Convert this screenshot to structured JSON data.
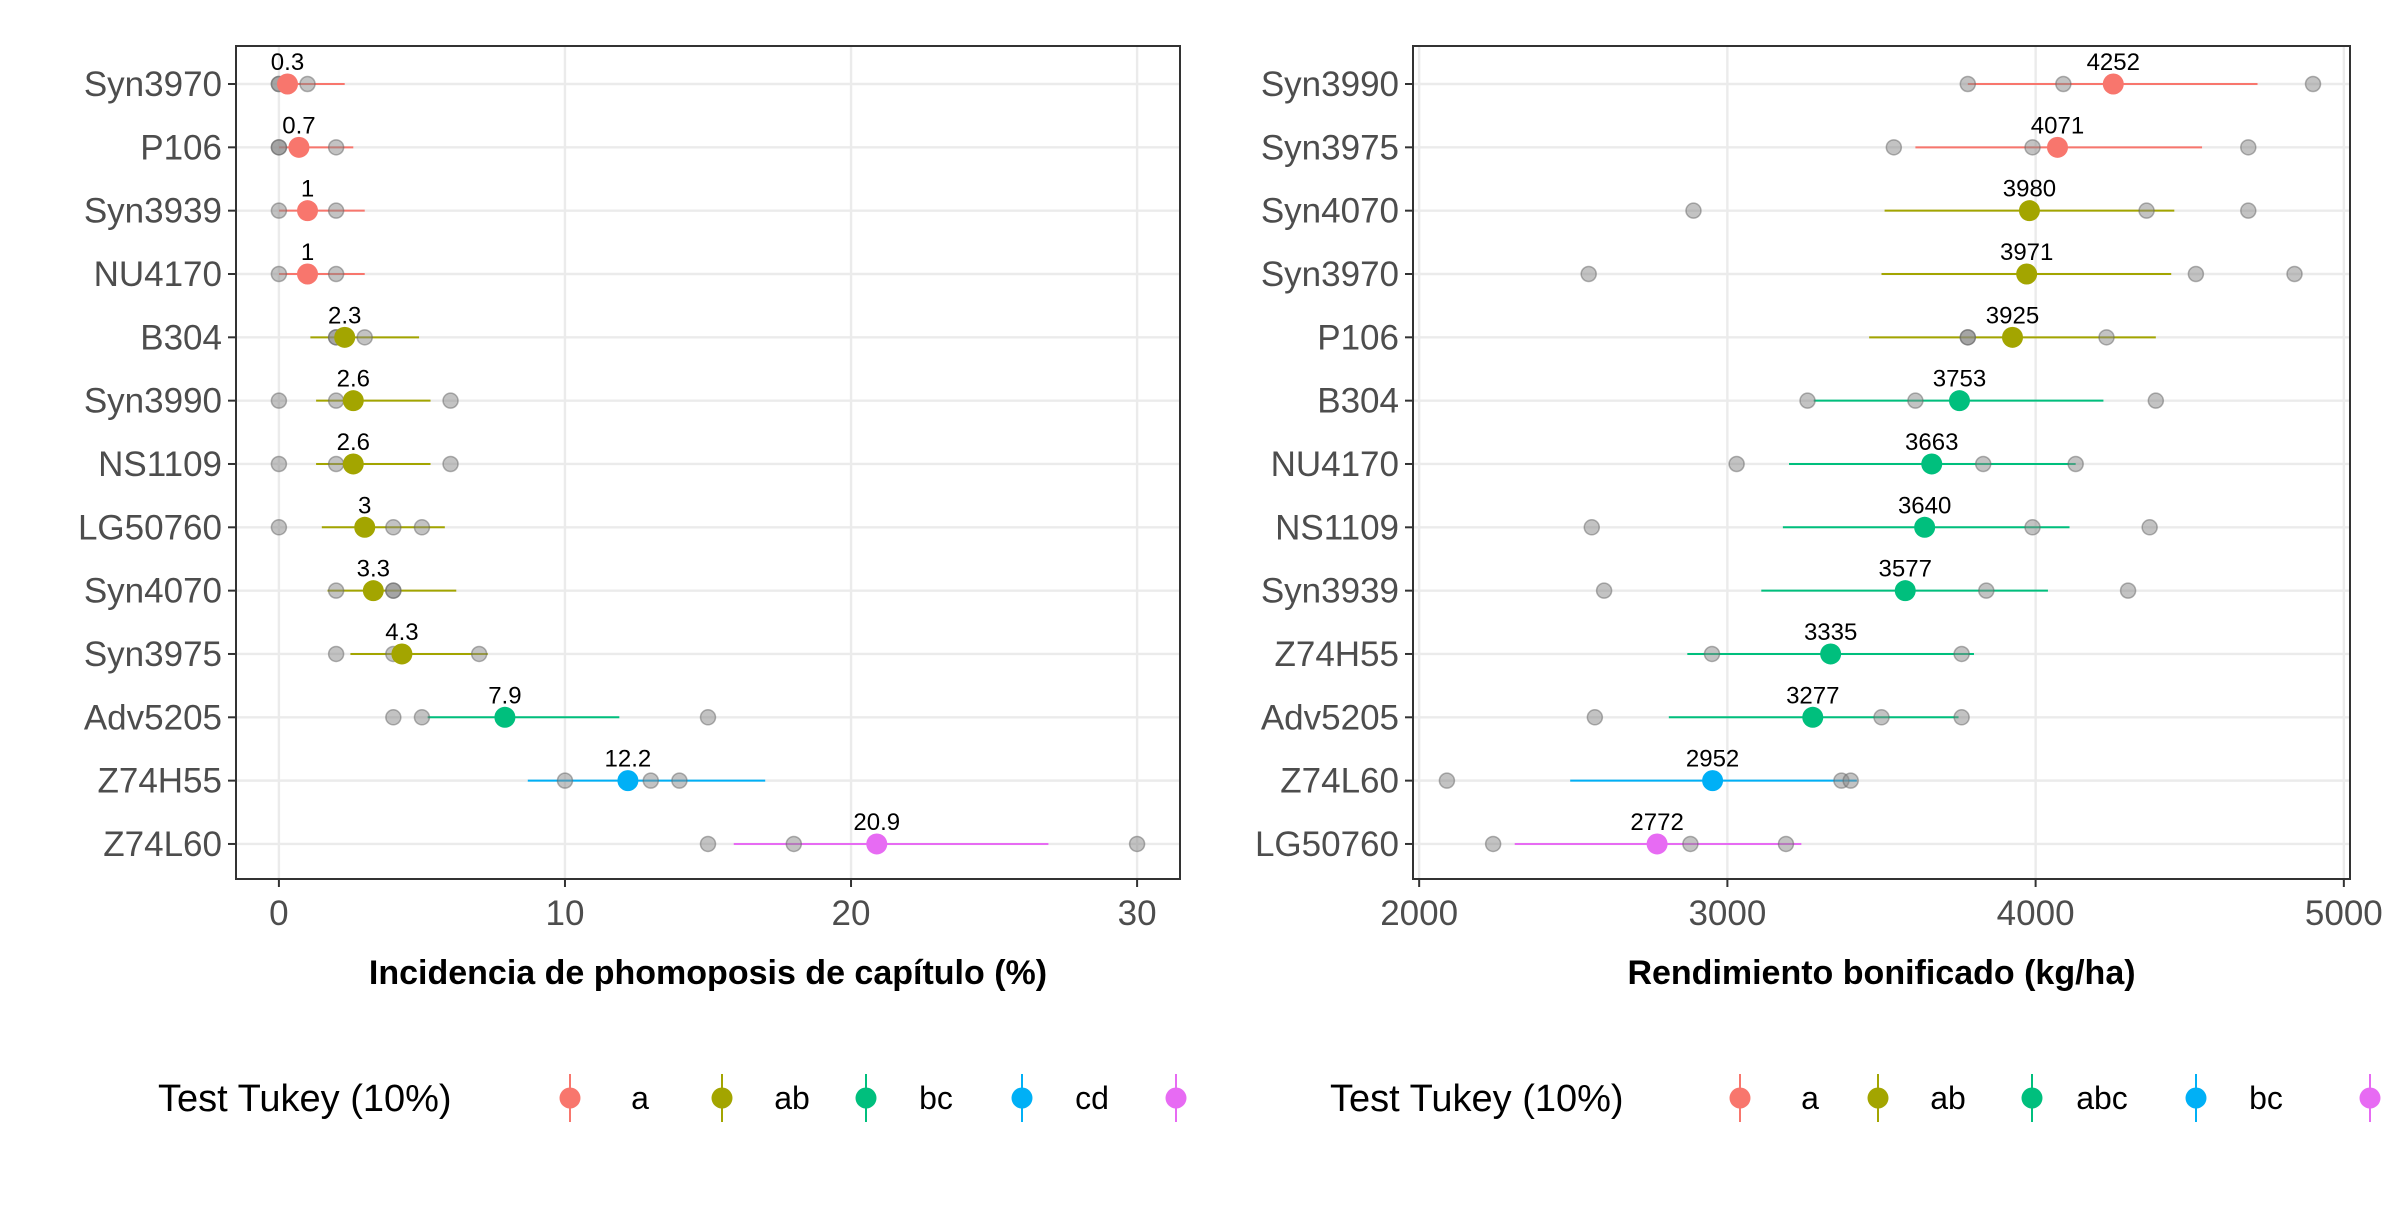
{
  "chart_data": [
    {
      "type": "scatter",
      "xlabel": "Incidencia de phomoposis de capítulo (%)",
      "ylabel": "",
      "xlim": [
        -1.5,
        31.5
      ],
      "xticks": [
        0,
        10,
        20,
        30
      ],
      "grid": true,
      "legend_position": "bottom",
      "legend": {
        "title": "Test Tukey (10%)",
        "entries": [
          {
            "label": "a",
            "color": "#F8766D"
          },
          {
            "label": "ab",
            "color": "#A3A500"
          },
          {
            "label": "bc",
            "color": "#00BF7D"
          },
          {
            "label": "cd",
            "color": "#00B0F6"
          },
          {
            "label": "",
            "color": "#E76BF3"
          }
        ]
      },
      "categories": [
        "Syn3970",
        "P106",
        "Syn3939",
        "NU4170",
        "B304",
        "Syn3990",
        "NS1109",
        "LG50760",
        "Syn4070",
        "Syn3975",
        "Adv5205",
        "Z74H55",
        "Z74L60"
      ],
      "series": [
        {
          "category": "Syn3970",
          "group": "a",
          "mean": 0.3,
          "label": "0.3",
          "ci": [
            0,
            2.3
          ],
          "obs": [
            0,
            0,
            1
          ]
        },
        {
          "category": "P106",
          "group": "a",
          "mean": 0.7,
          "label": "0.7",
          "ci": [
            0,
            2.6
          ],
          "obs": [
            0,
            0,
            2
          ]
        },
        {
          "category": "Syn3939",
          "group": "a",
          "mean": 1,
          "label": "1",
          "ci": [
            0,
            3.0
          ],
          "obs": [
            0,
            1,
            2
          ]
        },
        {
          "category": "NU4170",
          "group": "a",
          "mean": 1,
          "label": "1",
          "ci": [
            0,
            3.0
          ],
          "obs": [
            0,
            1,
            2
          ]
        },
        {
          "category": "B304",
          "group": "ab",
          "mean": 2.3,
          "label": "2.3",
          "ci": [
            1.1,
            4.9
          ],
          "obs": [
            2,
            2,
            3
          ]
        },
        {
          "category": "Syn3990",
          "group": "ab",
          "mean": 2.6,
          "label": "2.6",
          "ci": [
            1.3,
            5.3
          ],
          "obs": [
            0,
            2,
            6
          ]
        },
        {
          "category": "NS1109",
          "group": "ab",
          "mean": 2.6,
          "label": "2.6",
          "ci": [
            1.3,
            5.3
          ],
          "obs": [
            0,
            2,
            6
          ]
        },
        {
          "category": "LG50760",
          "group": "ab",
          "mean": 3,
          "label": "3",
          "ci": [
            1.5,
            5.8
          ],
          "obs": [
            0,
            4,
            5
          ]
        },
        {
          "category": "Syn4070",
          "group": "ab",
          "mean": 3.3,
          "label": "3.3",
          "ci": [
            1.7,
            6.2
          ],
          "obs": [
            2,
            4,
            4
          ]
        },
        {
          "category": "Syn3975",
          "group": "ab",
          "mean": 4.3,
          "label": "4.3",
          "ci": [
            2.5,
            7.3
          ],
          "obs": [
            2,
            4,
            7
          ]
        },
        {
          "category": "Adv5205",
          "group": "bc",
          "mean": 7.9,
          "label": "7.9",
          "ci": [
            5.2,
            11.9
          ],
          "obs": [
            4,
            5,
            15
          ]
        },
        {
          "category": "Z74H55",
          "group": "cd",
          "mean": 12.2,
          "label": "12.2",
          "ci": [
            8.7,
            17.0
          ],
          "obs": [
            10,
            13,
            14
          ]
        },
        {
          "category": "Z74L60",
          "group": "",
          "mean": 20.9,
          "label": "20.9",
          "ci": [
            15.9,
            26.9
          ],
          "obs": [
            15,
            18,
            30
          ]
        }
      ]
    },
    {
      "type": "scatter",
      "xlabel": "Rendimiento bonificado (kg/ha)",
      "ylabel": "",
      "xlim": [
        1980,
        5020
      ],
      "xticks": [
        2000,
        3000,
        4000,
        5000
      ],
      "grid": true,
      "legend_position": "bottom",
      "legend": {
        "title": "Test Tukey (10%)",
        "entries": [
          {
            "label": "a",
            "color": "#F8766D"
          },
          {
            "label": "ab",
            "color": "#A3A500"
          },
          {
            "label": "abc",
            "color": "#00BF7D"
          },
          {
            "label": "bc",
            "color": "#00B0F6"
          },
          {
            "label": "",
            "color": "#E76BF3"
          }
        ]
      },
      "categories": [
        "Syn3990",
        "Syn3975",
        "Syn4070",
        "Syn3970",
        "P106",
        "B304",
        "NU4170",
        "NS1109",
        "Syn3939",
        "Z74H55",
        "Adv5205",
        "Z74L60",
        "LG50760"
      ],
      "series": [
        {
          "category": "Syn3990",
          "group": "a",
          "mean": 4252,
          "label": "4252",
          "ci": [
            3780,
            4720
          ],
          "obs": [
            3780,
            4090,
            4900
          ]
        },
        {
          "category": "Syn3975",
          "group": "a",
          "mean": 4071,
          "label": "4071",
          "ci": [
            3610,
            4540
          ],
          "obs": [
            3540,
            3990,
            4690
          ]
        },
        {
          "category": "Syn4070",
          "group": "ab",
          "mean": 3980,
          "label": "3980",
          "ci": [
            3510,
            4450
          ],
          "obs": [
            2890,
            4360,
            4690
          ]
        },
        {
          "category": "Syn3970",
          "group": "ab",
          "mean": 3971,
          "label": "3971",
          "ci": [
            3500,
            4440
          ],
          "obs": [
            2550,
            4520,
            4840
          ]
        },
        {
          "category": "P106",
          "group": "ab",
          "mean": 3925,
          "label": "3925",
          "ci": [
            3460,
            4390
          ],
          "obs": [
            3780,
            3780,
            4230
          ]
        },
        {
          "category": "B304",
          "group": "abc",
          "mean": 3753,
          "label": "3753",
          "ci": [
            3280,
            4220
          ],
          "obs": [
            3260,
            3610,
            4390
          ]
        },
        {
          "category": "NU4170",
          "group": "abc",
          "mean": 3663,
          "label": "3663",
          "ci": [
            3200,
            4130
          ],
          "obs": [
            3030,
            3830,
            4130
          ]
        },
        {
          "category": "NS1109",
          "group": "abc",
          "mean": 3640,
          "label": "3640",
          "ci": [
            3180,
            4110
          ],
          "obs": [
            2560,
            3990,
            4370
          ]
        },
        {
          "category": "Syn3939",
          "group": "abc",
          "mean": 3577,
          "label": "3577",
          "ci": [
            3110,
            4040
          ],
          "obs": [
            2600,
            3840,
            4300
          ]
        },
        {
          "category": "Z74H55",
          "group": "abc",
          "mean": 3335,
          "label": "3335",
          "ci": [
            2870,
            3800
          ],
          "obs": [
            2950,
            3330,
            3760
          ]
        },
        {
          "category": "Adv5205",
          "group": "abc",
          "mean": 3277,
          "label": "3277",
          "ci": [
            2810,
            3750
          ],
          "obs": [
            2570,
            3500,
            3760
          ]
        },
        {
          "category": "Z74L60",
          "group": "bc",
          "mean": 2952,
          "label": "2952",
          "ci": [
            2490,
            3420
          ],
          "obs": [
            2090,
            3370,
            3400
          ]
        },
        {
          "category": "LG50760",
          "group": "",
          "mean": 2772,
          "label": "2772",
          "ci": [
            2310,
            3240
          ],
          "obs": [
            2240,
            2880,
            3190
          ]
        }
      ]
    }
  ]
}
